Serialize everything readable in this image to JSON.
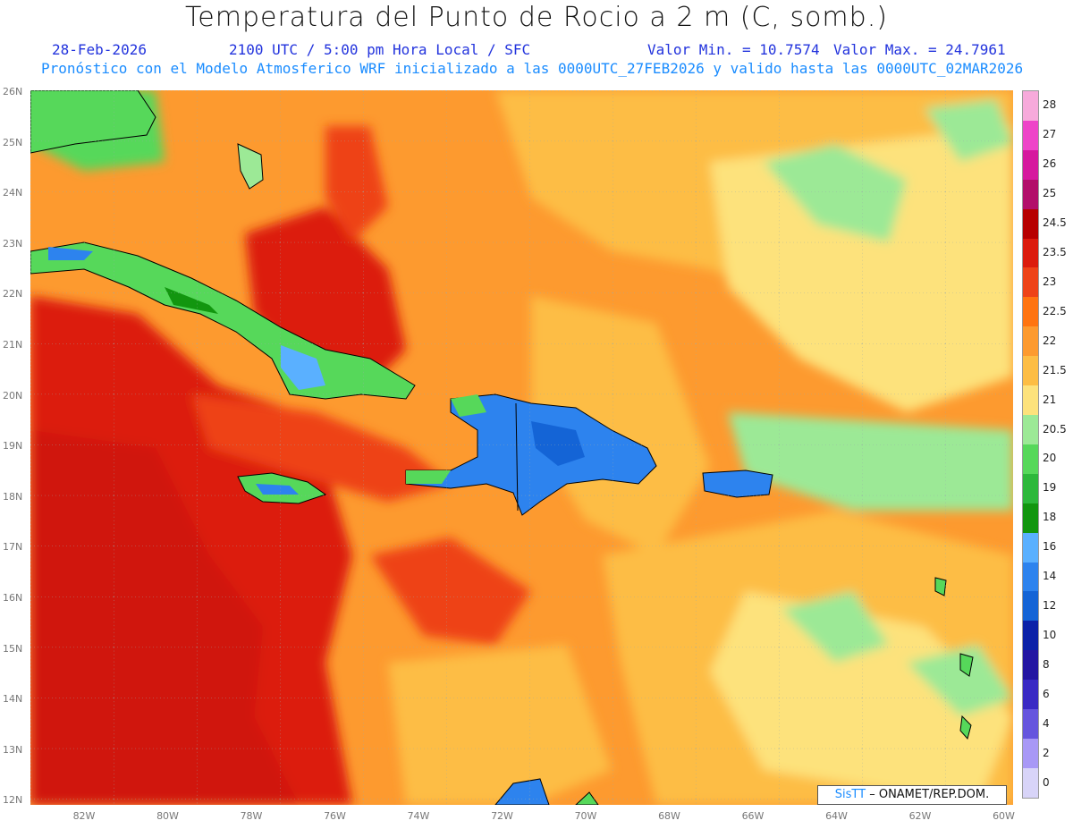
{
  "title": "Temperatura del Punto de Rocio a 2 m (C, somb.)",
  "subtitle": {
    "date": "28-Feb-2026",
    "time": "2100 UTC / 5:00 pm Hora Local / SFC",
    "min": "Valor Min. = 10.7574",
    "max": "Valor Max. = 24.7961",
    "description": "Pronóstico con el Modelo Atmosferico WRF inicializado a las 0000UTC_27FEB2026 y valido hasta las  0000UTC_02MAR2026"
  },
  "lat_labels": [
    "26N",
    "25N",
    "24N",
    "23N",
    "22N",
    "21N",
    "20N",
    "19N",
    "18N",
    "17N",
    "16N",
    "15N",
    "14N",
    "13N",
    "12N"
  ],
  "lon_labels": [
    "82W",
    "80W",
    "78W",
    "76W",
    "74W",
    "72W",
    "70W",
    "68W",
    "66W",
    "64W",
    "62W",
    "60W"
  ],
  "colorbar": {
    "labels": [
      "28",
      "27",
      "26",
      "25",
      "24.5",
      "23.5",
      "23",
      "22.5",
      "22",
      "21.5",
      "21",
      "20.5",
      "20",
      "19",
      "18",
      "16",
      "14",
      "12",
      "10",
      "8",
      "6",
      "4",
      "2",
      "0"
    ],
    "colors": [
      "#f7aadb",
      "#ee44c8",
      "#d6199e",
      "#b20e6a",
      "#b70000",
      "#dc1b0d",
      "#ee4318",
      "#ff7411",
      "#fd9a2f",
      "#fdbd44",
      "#fde27c",
      "#9ce996",
      "#56d85a",
      "#2db83b",
      "#12960f",
      "#5ab0ff",
      "#2d83ee",
      "#1464d6",
      "#0c22a8",
      "#2416a2",
      "#3a2ac4",
      "#6655de",
      "#a898f6",
      "#d8d4f8"
    ]
  },
  "credit": {
    "brand": "SisTT",
    "text": "–  ONAMET/REP.DOM."
  }
}
